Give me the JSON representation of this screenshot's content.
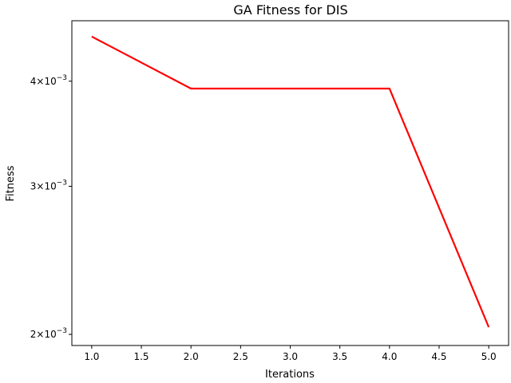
{
  "chart_data": {
    "type": "line",
    "title": "GA Fitness for DIS",
    "xlabel": "Iterations",
    "ylabel": "Fitness",
    "yscale": "log",
    "grid": false,
    "x": [
      1.0,
      2.0,
      3.0,
      4.0,
      5.0
    ],
    "series": [
      {
        "values": [
          0.00452,
          0.00392,
          0.00392,
          0.00392,
          0.00204
        ],
        "color": "#ff0000"
      }
    ],
    "xlim": [
      0.8,
      5.2
    ],
    "ylim": [
      0.00194,
      0.00472
    ],
    "xticks": [
      {
        "value": 1.0,
        "label": "1.0"
      },
      {
        "value": 1.5,
        "label": "1.5"
      },
      {
        "value": 2.0,
        "label": "2.0"
      },
      {
        "value": 2.5,
        "label": "2.5"
      },
      {
        "value": 3.0,
        "label": "3.0"
      },
      {
        "value": 3.5,
        "label": "3.5"
      },
      {
        "value": 4.0,
        "label": "4.0"
      },
      {
        "value": 4.5,
        "label": "4.5"
      },
      {
        "value": 5.0,
        "label": "5.0"
      }
    ],
    "yticks": [
      {
        "value": 0.002,
        "base": "2×10",
        "exp": "−3"
      },
      {
        "value": 0.003,
        "base": "3×10",
        "exp": "−3"
      },
      {
        "value": 0.004,
        "base": "4×10",
        "exp": "−3"
      }
    ]
  }
}
